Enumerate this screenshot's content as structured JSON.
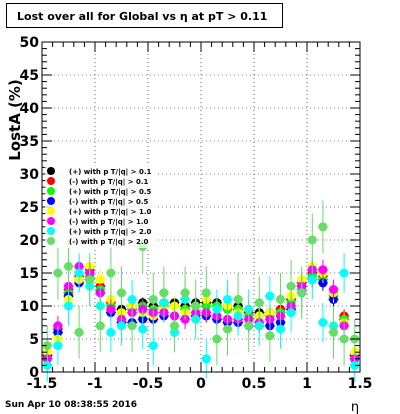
{
  "title": "Lost over all for Global vs   η at pT > 0.11",
  "footer": "Sun Apr 10 08:38:55 2016",
  "chart_data": {
    "type": "scatter",
    "title": "Lost over all for Global vs   η at pT > 0.11",
    "xlabel": "η",
    "ylabel": "LostA (%)",
    "xlim": [
      -1.5,
      1.5
    ],
    "ylim": [
      0,
      50
    ],
    "xticks": [
      "-1.5",
      "-1",
      "-0.5",
      "0",
      "0.5",
      "1",
      "1.5"
    ],
    "yticks": [
      "0",
      "5",
      "10",
      "15",
      "20",
      "25",
      "30",
      "35",
      "40",
      "45",
      "50"
    ],
    "grid": true,
    "legend_position": "left-middle",
    "x": [
      -1.45,
      -1.35,
      -1.25,
      -1.15,
      -1.05,
      -0.95,
      -0.85,
      -0.75,
      -0.65,
      -0.55,
      -0.45,
      -0.35,
      -0.25,
      -0.15,
      -0.05,
      0.05,
      0.15,
      0.25,
      0.35,
      0.45,
      0.55,
      0.65,
      0.75,
      0.85,
      0.95,
      1.05,
      1.15,
      1.25,
      1.35,
      1.45
    ],
    "series": [
      {
        "name": "(+) with p T/|q| > 0.1",
        "color": "#000000",
        "values": [
          2,
          6,
          12,
          14,
          15,
          13,
          10,
          9.5,
          10,
          10.5,
          10,
          10.5,
          10.5,
          10,
          10.5,
          10.5,
          10.5,
          10,
          10,
          9,
          9,
          9,
          9.5,
          11,
          13,
          15,
          14,
          12,
          8,
          2
        ],
        "errors": [
          1,
          1,
          1,
          1,
          1,
          1,
          1,
          0.8,
          0.8,
          0.8,
          0.8,
          0.8,
          0.8,
          0.8,
          0.8,
          0.8,
          0.8,
          0.8,
          0.8,
          0.8,
          0.8,
          0.8,
          0.8,
          1,
          1,
          1,
          1,
          1,
          1,
          1
        ]
      },
      {
        "name": "(-) with p T/|q| > 0.1",
        "color": "#ff0000",
        "values": [
          2.5,
          6.5,
          12.5,
          14.5,
          15.5,
          13,
          10.5,
          9,
          9.5,
          10,
          9.5,
          10,
          10,
          9.5,
          10,
          10,
          10,
          9.5,
          9.5,
          9,
          8.5,
          9,
          9.5,
          11,
          13.5,
          15,
          14.5,
          12,
          8.5,
          2.5
        ],
        "errors": [
          1,
          1,
          1,
          1,
          1,
          1,
          1,
          0.8,
          0.8,
          0.8,
          0.8,
          0.8,
          0.8,
          0.8,
          0.8,
          0.8,
          0.8,
          0.8,
          0.8,
          0.8,
          0.8,
          0.8,
          0.8,
          1,
          1,
          1,
          1,
          1,
          1,
          1
        ]
      },
      {
        "name": "(+) with p T/|q| > 0.5",
        "color": "#00ff00",
        "values": [
          2,
          6,
          12,
          14,
          14.5,
          12.5,
          10,
          9,
          9.5,
          10,
          9.5,
          10,
          10,
          9.5,
          10,
          10,
          10,
          9.5,
          9.5,
          8.5,
          8.5,
          8.5,
          9,
          10.5,
          12.5,
          14.5,
          14,
          11.5,
          8,
          2
        ],
        "errors": [
          1.2,
          1.2,
          1.2,
          1.2,
          1.2,
          1.2,
          1,
          1,
          1,
          1,
          1,
          1,
          1,
          1,
          1,
          1,
          1,
          1,
          1,
          1,
          1,
          1,
          1,
          1,
          1.2,
          1.2,
          1.2,
          1.2,
          1.2,
          1.2
        ]
      },
      {
        "name": "(-) with p T/|q| > 0.5",
        "color": "#0000ff",
        "values": [
          2.5,
          6,
          11.5,
          13.5,
          14,
          12,
          9,
          7.5,
          7.5,
          8,
          8,
          8.5,
          8.5,
          8,
          8.5,
          8.5,
          8,
          7.5,
          7.5,
          7,
          7,
          7,
          7.5,
          9.5,
          12,
          14,
          13.5,
          11,
          7.5,
          2.5
        ],
        "errors": [
          1.2,
          1.2,
          1.2,
          1.2,
          1.2,
          1.2,
          1,
          1,
          1,
          1,
          1,
          1,
          1,
          1,
          1,
          1,
          1,
          1,
          1,
          1,
          1,
          1,
          1,
          1,
          1.2,
          1.2,
          1.2,
          1.2,
          1.2,
          1.2
        ]
      },
      {
        "name": "(+) with p T/|q| > 1.0",
        "color": "#ffff00",
        "values": [
          3,
          5,
          11,
          14,
          16,
          14,
          11,
          9,
          10,
          9,
          8.5,
          9.5,
          10,
          9,
          10,
          11,
          9.5,
          10,
          9,
          8,
          8.5,
          9,
          8.5,
          11.5,
          14,
          16,
          15,
          12,
          7.5,
          3
        ],
        "errors": [
          1.5,
          1.5,
          1.5,
          1.5,
          1.5,
          1.5,
          1.5,
          1.5,
          1.5,
          1.5,
          1.5,
          1.5,
          1.5,
          1.5,
          1.5,
          1.5,
          1.5,
          1.5,
          1.5,
          1.5,
          1.5,
          1.5,
          1.5,
          1.5,
          1.5,
          1.5,
          1.5,
          1.5,
          1.5,
          1.5
        ]
      },
      {
        "name": "(-) with p T/|q| > 1.0",
        "color": "#ff00ff",
        "values": [
          2,
          7,
          13,
          16,
          15,
          12,
          9.5,
          8,
          9,
          9.5,
          9,
          9,
          8.5,
          8,
          9,
          9,
          8.5,
          8,
          8,
          8,
          7.5,
          8,
          8.5,
          10,
          13,
          15.5,
          15.5,
          12.5,
          7,
          2
        ],
        "errors": [
          1.5,
          1.5,
          1.5,
          1.5,
          1.5,
          1.5,
          1.5,
          1.5,
          1.5,
          1.5,
          1.5,
          1.5,
          1.5,
          1.5,
          1.5,
          1.5,
          1.5,
          1.5,
          1.5,
          1.5,
          1.5,
          1.5,
          1.5,
          1.5,
          1.5,
          1.5,
          1.5,
          1.5,
          1.5,
          1.5
        ]
      },
      {
        "name": "(+) with p T/|q| > 2.0",
        "color": "#00ffff",
        "values": [
          1,
          4,
          10,
          15,
          13,
          10,
          6,
          7,
          11,
          6.5,
          4,
          10.5,
          6,
          11,
          8,
          2,
          9.5,
          11,
          8.5,
          9.5,
          7,
          11.5,
          6.5,
          9,
          12,
          14,
          7.5,
          7,
          15,
          1
        ],
        "errors": [
          2.5,
          3,
          3,
          3,
          3,
          3,
          3,
          3,
          3,
          3,
          3,
          3,
          3,
          3,
          3,
          3,
          3,
          3,
          3,
          3,
          3,
          3,
          3,
          3,
          3,
          3,
          3,
          3,
          3,
          2.5
        ]
      },
      {
        "name": "(-) with p T/|q| > 2.0",
        "color": "#66dd66",
        "values": [
          4,
          15,
          16,
          6,
          14,
          7,
          15,
          12,
          7,
          19,
          11,
          12,
          7,
          12,
          10,
          12,
          5,
          6.5,
          11,
          7,
          10.5,
          5.5,
          11,
          13,
          12,
          20,
          22,
          6,
          5,
          5
        ],
        "errors": [
          3,
          4,
          4,
          4,
          4,
          4,
          4,
          4,
          4,
          4,
          4,
          4,
          4,
          4,
          4,
          4,
          4,
          4,
          4,
          4,
          4,
          4,
          4,
          4,
          4,
          4,
          4,
          4,
          4,
          3
        ]
      }
    ]
  }
}
